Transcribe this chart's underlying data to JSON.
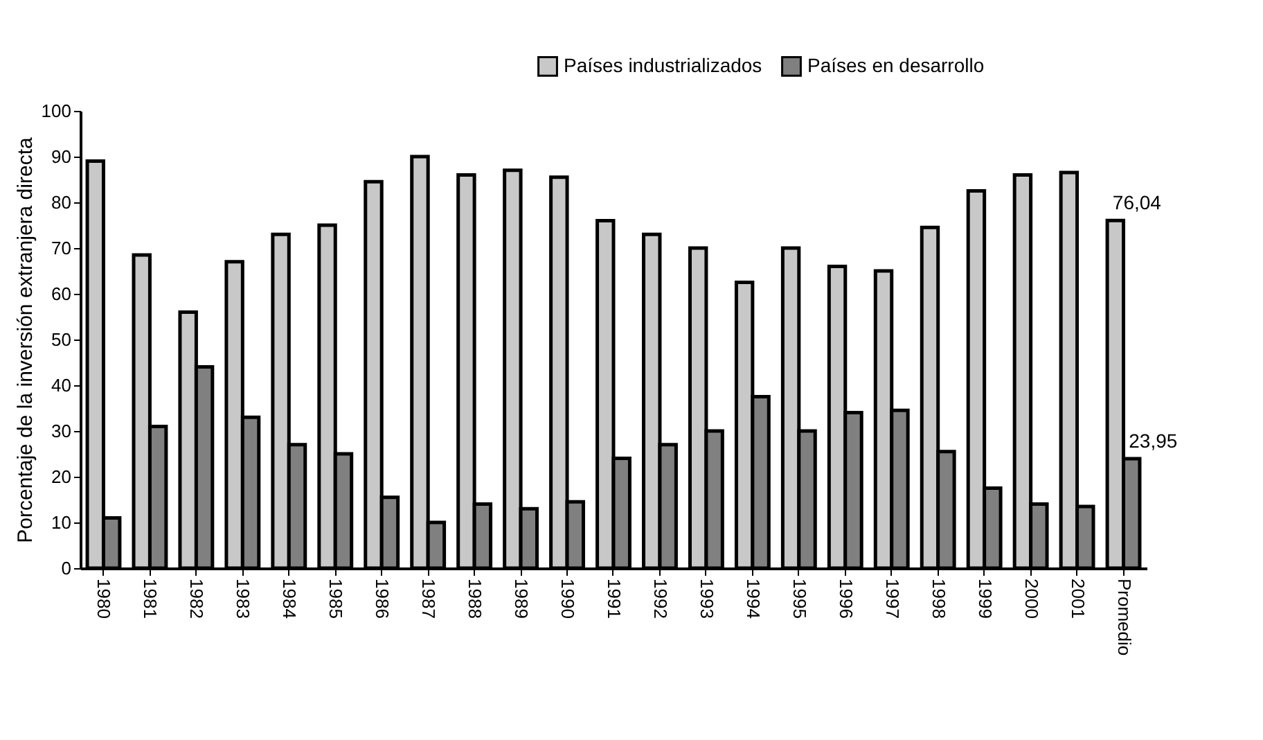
{
  "chart_data": {
    "type": "bar",
    "ylabel": "Porcentaje de la inversión extranjera directa",
    "categories": [
      "1980",
      "1981",
      "1982",
      "1983",
      "1984",
      "1985",
      "1986",
      "1987",
      "1988",
      "1989",
      "1990",
      "1991",
      "1992",
      "1993",
      "1994",
      "1995",
      "1996",
      "1997",
      "1998",
      "1999",
      "2000",
      "2001",
      "Promedio"
    ],
    "series": [
      {
        "name": "Países industrializados",
        "color": "#c8c8c8",
        "values": [
          89,
          68.5,
          56,
          67,
          73,
          75,
          84.5,
          90,
          86,
          87,
          85.5,
          76,
          73,
          70,
          62.5,
          70,
          66,
          65,
          74.5,
          82.5,
          86,
          86.5,
          76.04
        ],
        "value_labels": [
          null,
          null,
          null,
          null,
          null,
          null,
          null,
          null,
          null,
          null,
          null,
          null,
          null,
          null,
          null,
          null,
          null,
          null,
          null,
          null,
          null,
          null,
          "76,04"
        ]
      },
      {
        "name": "Países en desarrollo",
        "color": "#808080",
        "values": [
          11,
          31,
          44,
          33,
          27,
          25,
          15.5,
          10,
          14,
          13,
          14.5,
          24,
          27,
          30,
          37.5,
          30,
          34,
          34.5,
          25.5,
          17.5,
          14,
          13.5,
          23.95
        ],
        "value_labels": [
          null,
          null,
          null,
          null,
          null,
          null,
          null,
          null,
          null,
          null,
          null,
          null,
          null,
          null,
          null,
          null,
          null,
          null,
          null,
          null,
          null,
          null,
          "23,95"
        ]
      }
    ],
    "ylim": [
      0,
      100
    ],
    "yticks": [
      0,
      10,
      20,
      30,
      40,
      50,
      60,
      70,
      80,
      90,
      100
    ],
    "grid": false,
    "legend": "top right"
  }
}
